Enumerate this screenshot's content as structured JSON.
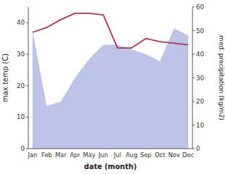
{
  "chart_data": {
    "type": "line",
    "xlabel": "date (month)",
    "ylabel": "max temp (C)",
    "y2label": "med. precipitation (kg/m2)",
    "categories": [
      "Jan",
      "Feb",
      "Mar",
      "Apr",
      "May",
      "Jun",
      "Jul",
      "Aug",
      "Sep",
      "Oct",
      "Nov",
      "Dec"
    ],
    "series": [
      {
        "type": "area",
        "axis": "y2",
        "color": "#bcc5e8",
        "values": [
          50,
          18,
          20,
          30,
          38,
          44,
          44,
          42,
          40,
          37,
          51,
          48
        ]
      },
      {
        "type": "line",
        "color": "#b03050",
        "values": [
          37,
          38.5,
          41,
          43,
          43,
          42.5,
          32,
          32,
          35,
          34,
          33.5,
          33
        ]
      }
    ],
    "ylim": [
      0,
      45
    ],
    "yticks": [
      0,
      10,
      20,
      30,
      40
    ],
    "y2lim": [
      0,
      60
    ],
    "y2ticks": [
      0,
      10,
      20,
      30,
      40,
      50,
      60
    ],
    "grid": false
  }
}
